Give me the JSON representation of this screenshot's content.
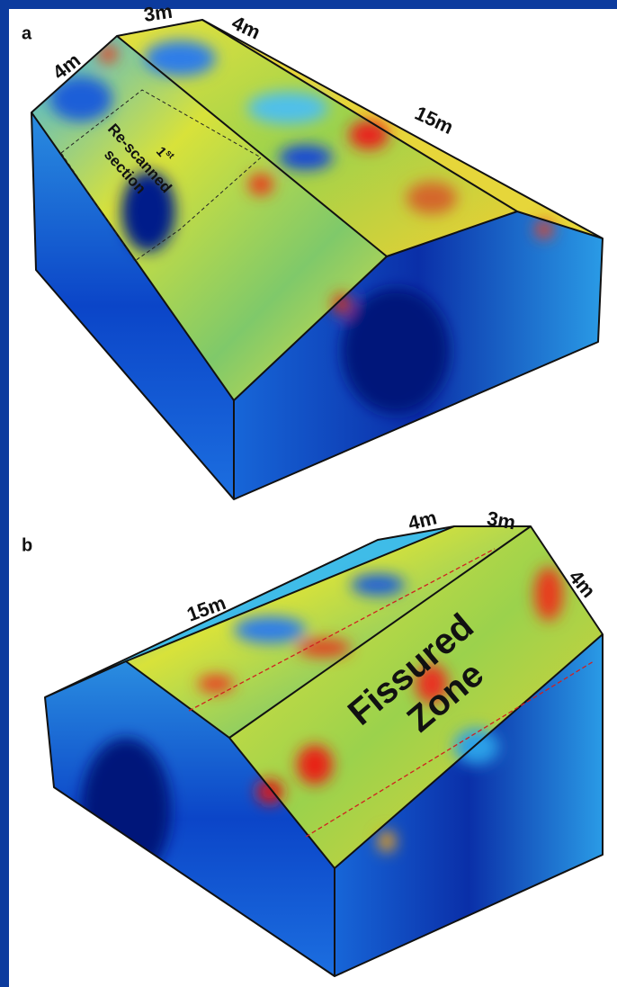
{
  "panels": [
    {
      "label": "a",
      "dimensions": [
        "4m",
        "3m",
        "4m",
        "15m"
      ],
      "annotation": {
        "ordinal": "1",
        "ordinal_suffix": "st",
        "lines": [
          "Re-scanned",
          "section"
        ]
      }
    },
    {
      "label": "b",
      "dimensions": [
        "4m",
        "3m",
        "4m",
        "15m"
      ],
      "annotation": {
        "lines": [
          "Fissured",
          "Zone"
        ]
      }
    }
  ]
}
